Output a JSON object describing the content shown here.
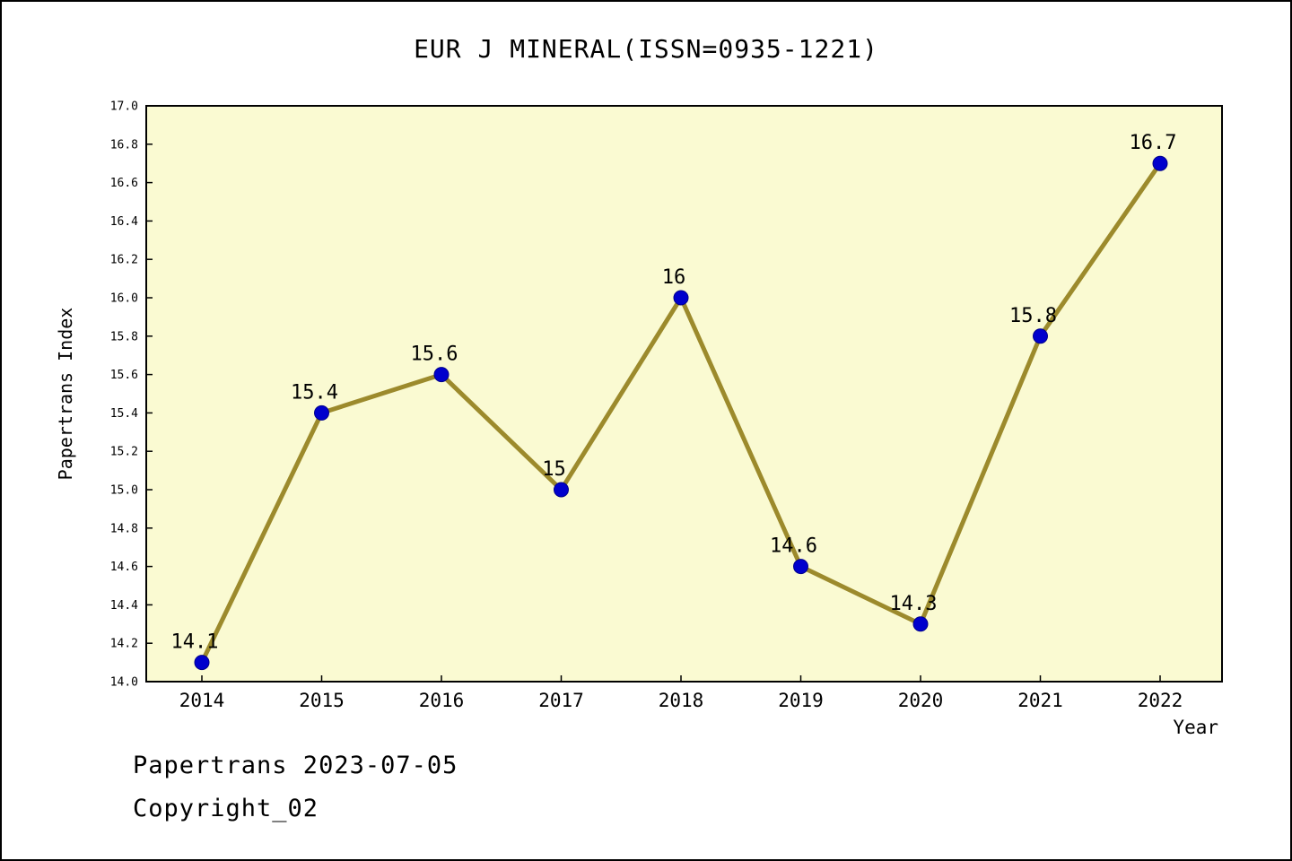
{
  "title": "EUR J MINERAL(ISSN=0935-1221)",
  "footer": {
    "line1": "Papertrans 2023-07-05",
    "line2": "Copyright_02"
  },
  "chart_data": {
    "type": "line",
    "title": "EUR J MINERAL(ISSN=0935-1221)",
    "xlabel": "Year",
    "ylabel": "Papertrans Index",
    "x": [
      2014,
      2015,
      2016,
      2017,
      2018,
      2019,
      2020,
      2021,
      2022
    ],
    "series": [
      {
        "name": "Papertrans Index",
        "values": [
          14.1,
          15.4,
          15.6,
          15.0,
          16.0,
          14.6,
          14.3,
          15.8,
          16.7
        ]
      }
    ],
    "point_labels": [
      "14.1",
      "15.4",
      "15.6",
      "15",
      "16",
      "14.6",
      "14.3",
      "15.8",
      "16.7"
    ],
    "ylim": [
      14.0,
      17.0
    ],
    "ytick_step": 0.2,
    "grid": false,
    "legend": "none",
    "colors": {
      "line": "#9c8a2c",
      "marker": "#0000cd",
      "marker_edge": "#00008b",
      "plot_bg": "#fafad2",
      "page_bg": "#ffffff",
      "text": "#000000",
      "border": "#000000"
    }
  }
}
